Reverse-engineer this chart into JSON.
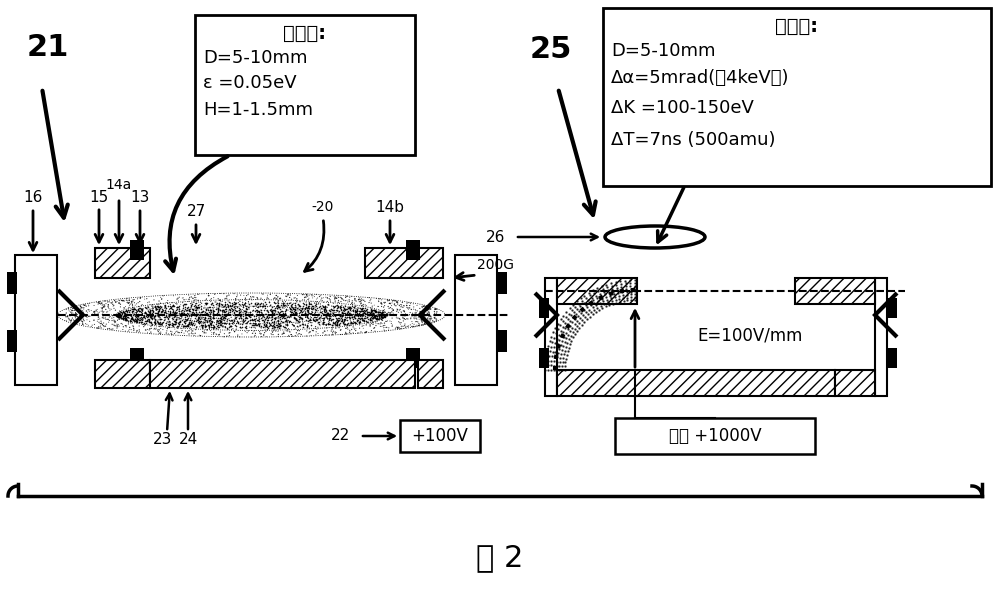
{
  "title": "图 2",
  "bg_color": "#ffffff",
  "fig_width": 10.0,
  "fig_height": 5.99,
  "box1_title": "离子云:",
  "box1_line1": "D=5-10mm",
  "box1_line2": "ε =0.05eV",
  "box1_line3": "H=1-1.5mm",
  "box2_title": "离子包:",
  "box2_line1": "D=5-10mm",
  "box2_line2": "Δα=5mrad(在4keV下)",
  "box2_line3": "ΔK =100-150eV",
  "box2_line4": "ΔT=7ns (500amu)",
  "label_21": "21",
  "label_25": "25",
  "label_26": "26",
  "label_16": "16",
  "label_15": "15",
  "label_14a": "14a",
  "label_13": "13",
  "label_27": "27",
  "label_20": "-20",
  "label_14b": "14b",
  "label_200G": "200G",
  "label_23": "23",
  "label_24": "24",
  "label_22": "22",
  "label_100V": "+100V",
  "label_E": "E=100V/mm",
  "label_pulse": "脉冲 +1000V"
}
